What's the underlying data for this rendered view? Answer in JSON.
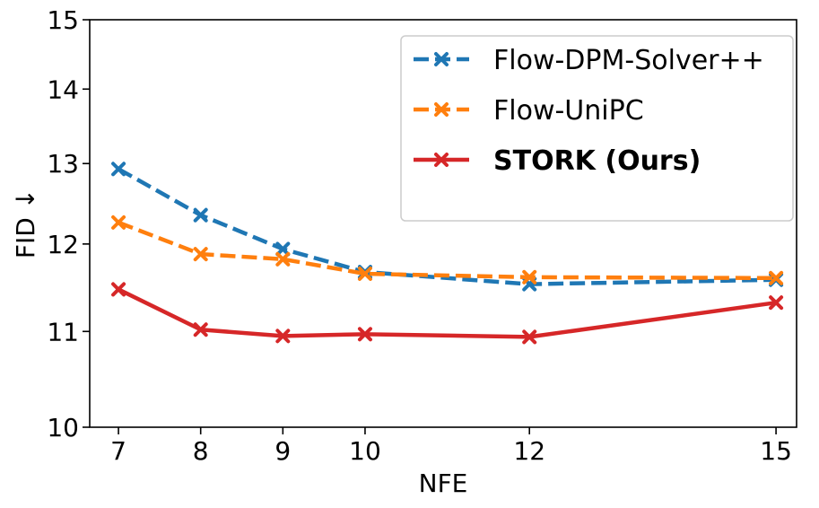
{
  "chart_data": {
    "type": "line",
    "title": "",
    "xlabel": "NFE",
    "ylabel": "FID ↓",
    "yscale": "log",
    "x": [
      7,
      8,
      9,
      10,
      12,
      15
    ],
    "x_tick_labels": [
      "7",
      "8",
      "9",
      "10",
      "12",
      "15"
    ],
    "xlim": [
      6.65,
      15.25
    ],
    "ylim": [
      10,
      15
    ],
    "y_ticks": [
      10,
      11,
      12,
      13,
      14,
      15
    ],
    "y_tick_labels": [
      "10",
      "11",
      "12",
      "13",
      "14",
      "15"
    ],
    "grid": false,
    "legend_position": "top-right",
    "series": [
      {
        "name": "Flow-DPM-Solver++",
        "color": "#1f77b4",
        "line_style": "dashed",
        "marker": "x",
        "bold_label": false,
        "values": [
          12.93,
          12.35,
          11.94,
          11.67,
          11.53,
          11.58
        ]
      },
      {
        "name": "Flow-UniPC",
        "color": "#ff7f0e",
        "line_style": "dashed",
        "marker": "x",
        "bold_label": false,
        "values": [
          12.26,
          11.88,
          11.82,
          11.65,
          11.61,
          11.6
        ]
      },
      {
        "name": "STORK (Ours)",
        "color": "#d62728",
        "line_style": "solid",
        "marker": "x",
        "bold_label": true,
        "values": [
          11.47,
          11.02,
          10.95,
          10.97,
          10.94,
          11.32
        ]
      }
    ]
  }
}
